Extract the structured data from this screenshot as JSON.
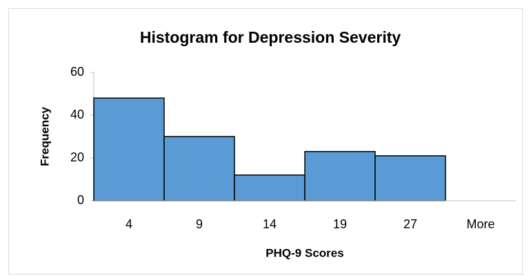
{
  "chart_data": {
    "type": "bar",
    "title": "Histogram for Depression Severity",
    "x_label": "PHQ-9 Scores",
    "y_label": "Frequency",
    "categories": [
      "4",
      "9",
      "14",
      "19",
      "27",
      "More"
    ],
    "values": [
      48,
      30,
      12,
      23,
      21,
      0
    ],
    "color": "#5b9bd5",
    "ylim": [
      0,
      60
    ],
    "yticks": [
      0,
      20,
      40,
      60
    ],
    "grid": false
  }
}
